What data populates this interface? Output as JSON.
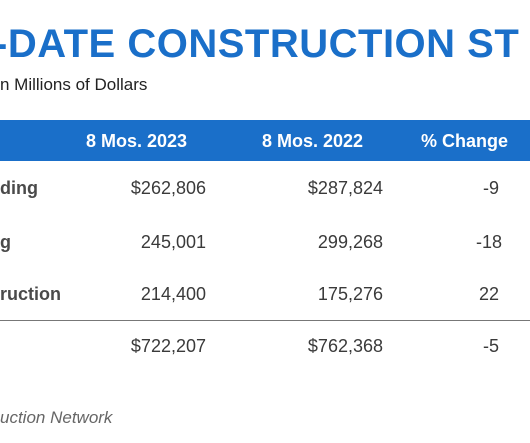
{
  "title": "-DATE CONSTRUCTION ST",
  "subtitle": "n Millions of Dollars",
  "table": {
    "headers": [
      "8 Mos. 2023",
      "8 Mos. 2022",
      "% Change"
    ],
    "rows": [
      {
        "label": "ding",
        "v2023": "$262,806",
        "v2022": "$287,824",
        "change": "-9"
      },
      {
        "label": "g",
        "v2023": "245,001",
        "v2022": "299,268",
        "change": "-18"
      },
      {
        "label": "ruction",
        "v2023": "214,400",
        "v2022": "175,276",
        "change": "22"
      }
    ],
    "total": {
      "v2023": "$722,207",
      "v2022": "$762,368",
      "change": "-5"
    }
  },
  "source": "uction Network",
  "colors": {
    "accent": "#1a6fc9",
    "header_text": "#ffffff"
  }
}
